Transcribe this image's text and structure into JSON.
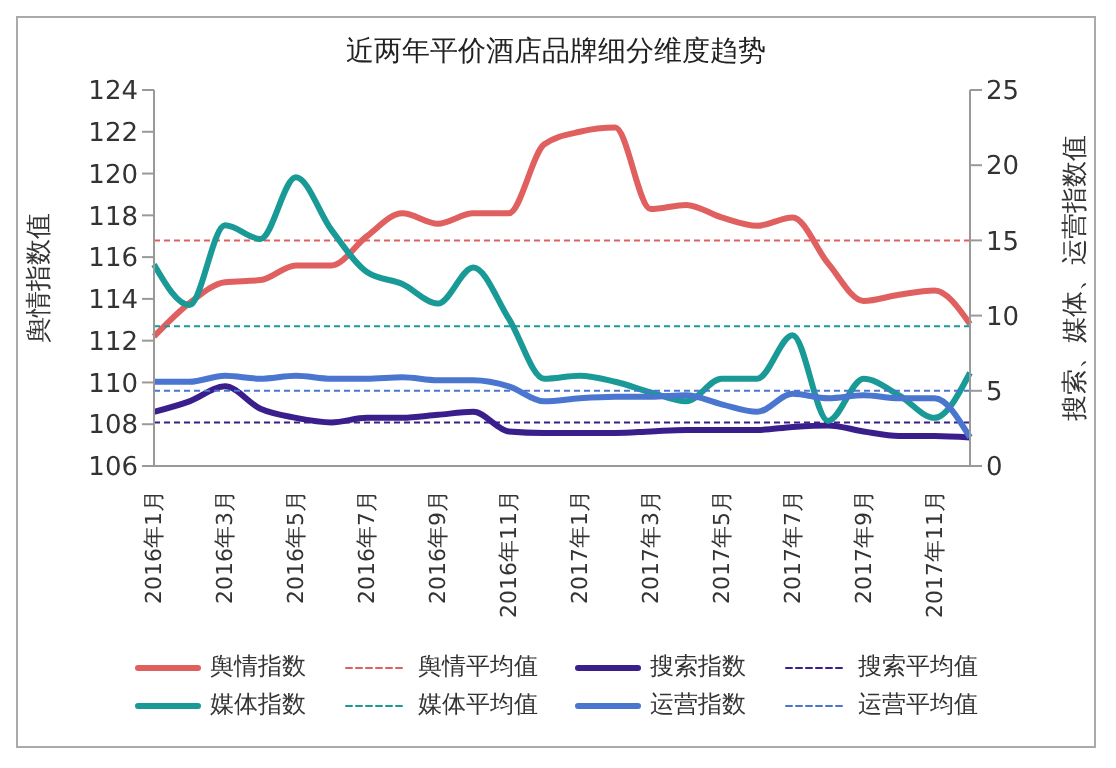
{
  "chart_data": {
    "type": "line",
    "title": "近两年平价酒店品牌细分维度趋势",
    "ylabel": "舆情指数值",
    "y2label": "搜索、媒体、运营指数值",
    "categories": [
      "2016年1月",
      null,
      "2016年3月",
      null,
      "2016年5月",
      null,
      "2016年7月",
      null,
      "2016年9月",
      null,
      "2016年11月",
      null,
      "2017年1月",
      null,
      "2017年3月",
      null,
      "2017年5月",
      null,
      "2017年7月",
      null,
      "2017年9月",
      null,
      "2017年11月",
      null
    ],
    "series": [
      {
        "name": "舆情指数",
        "color": "#e06060",
        "values": [
          112.2,
          113.8,
          114.8,
          114.9,
          115.6,
          115.6,
          117.0,
          118.1,
          117.6,
          118.1,
          118.1,
          121.4,
          122.0,
          122.2,
          118.3,
          118.5,
          117.9,
          117.5,
          117.9,
          115.7,
          113.9,
          114.2,
          114.4,
          112.8
        ]
      },
      {
        "name": "舆情平均值",
        "color": "#e06060",
        "line_style": "dashed",
        "values": [
          116.8,
          116.8,
          116.8,
          116.8,
          116.8,
          116.8,
          116.8,
          116.8,
          116.8,
          116.8,
          116.8,
          116.8,
          116.8,
          116.8,
          116.8,
          116.8,
          116.8,
          116.8,
          116.8,
          116.8,
          116.8,
          116.8,
          116.8,
          116.8
        ]
      },
      {
        "name": "搜索指数",
        "color": "#3a1f8c",
        "axis": "y2",
        "values": [
          3.6,
          4.3,
          5.3,
          3.8,
          3.2,
          2.9,
          3.2,
          3.2,
          3.4,
          3.6,
          2.3,
          2.2,
          2.2,
          2.2,
          2.3,
          2.4,
          2.4,
          2.4,
          2.6,
          2.7,
          2.3,
          2.0,
          2.0,
          1.9
        ]
      },
      {
        "name": "搜索平均值",
        "color": "#3a1f8c",
        "axis": "y2",
        "line_style": "dashed",
        "values": [
          2.9,
          2.9,
          2.9,
          2.9,
          2.9,
          2.9,
          2.9,
          2.9,
          2.9,
          2.9,
          2.9,
          2.9,
          2.9,
          2.9,
          2.9,
          2.9,
          2.9,
          2.9,
          2.9,
          2.9,
          2.9,
          2.9,
          2.9,
          2.9
        ]
      },
      {
        "name": "媒体指数",
        "color": "#1a9a96",
        "axis": "y2",
        "values": [
          13.4,
          10.7,
          16.0,
          15.1,
          19.2,
          15.7,
          12.9,
          12.1,
          10.8,
          13.2,
          9.8,
          5.8,
          6.0,
          5.6,
          4.9,
          4.3,
          5.8,
          5.8,
          8.7,
          3.0,
          5.8,
          4.7,
          3.2,
          6.2
        ]
      },
      {
        "name": "媒体平均值",
        "color": "#1a9a96",
        "axis": "y2",
        "line_style": "dashed",
        "values": [
          9.3,
          9.3,
          9.3,
          9.3,
          9.3,
          9.3,
          9.3,
          9.3,
          9.3,
          9.3,
          9.3,
          9.3,
          9.3,
          9.3,
          9.3,
          9.3,
          9.3,
          9.3,
          9.3,
          9.3,
          9.3,
          9.3,
          9.3,
          9.3
        ]
      },
      {
        "name": "运营指数",
        "color": "#4a76d0",
        "axis": "y2",
        "values": [
          5.6,
          5.6,
          6.0,
          5.8,
          6.0,
          5.8,
          5.8,
          5.9,
          5.7,
          5.7,
          5.3,
          4.3,
          4.5,
          4.6,
          4.6,
          4.7,
          4.1,
          3.6,
          4.8,
          4.5,
          4.7,
          4.5,
          4.5,
          1.9
        ]
      },
      {
        "name": "运营平均值",
        "color": "#4a76d0",
        "axis": "y2",
        "line_style": "dashed",
        "values": [
          5.0,
          5.0,
          5.0,
          5.0,
          5.0,
          5.0,
          5.0,
          5.0,
          5.0,
          5.0,
          5.0,
          5.0,
          5.0,
          5.0,
          5.0,
          5.0,
          5.0,
          5.0,
          5.0,
          5.0,
          5.0,
          5.0,
          5.0,
          5.0
        ]
      }
    ],
    "ylim": [
      106,
      124
    ],
    "yticks": [
      106,
      108,
      110,
      112,
      114,
      116,
      118,
      120,
      122,
      124
    ],
    "y2lim": [
      0,
      25
    ],
    "y2ticks": [
      0,
      5,
      10,
      15,
      20,
      25
    ],
    "legend": "bottom",
    "grid": false
  }
}
